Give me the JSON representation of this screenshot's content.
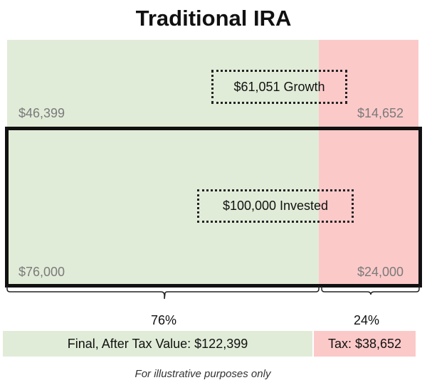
{
  "title": "Traditional IRA",
  "growth": {
    "callout": "$61,051  Growth",
    "after_tax": "$46,399",
    "tax": "$14,652"
  },
  "invested": {
    "callout": "$100,000  Invested",
    "after_tax": "$76,000",
    "tax": "$24,000"
  },
  "split": {
    "after_tax_pct": "76%",
    "tax_pct": "24%"
  },
  "summary": {
    "final_value": "Final, After Tax Value:  $122,399",
    "tax": "Tax:  $38,652"
  },
  "footnote": "For illustrative purposes only",
  "colors": {
    "after_tax": "#e1ecd8",
    "tax": "#fcc9c9",
    "frame": "#111111"
  }
}
